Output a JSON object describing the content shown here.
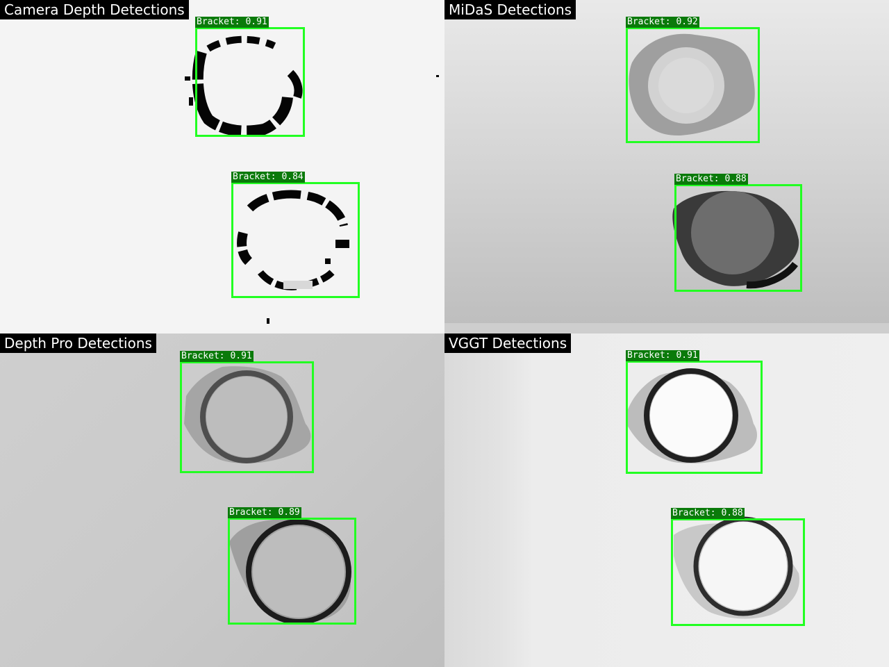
{
  "panels": [
    {
      "title": "Camera Depth Detections",
      "detections": [
        {
          "label": "Bracket: 0.91"
        },
        {
          "label": "Bracket: 0.84"
        }
      ]
    },
    {
      "title": "MiDaS Detections",
      "detections": [
        {
          "label": "Bracket: 0.92"
        },
        {
          "label": "Bracket: 0.88"
        }
      ]
    },
    {
      "title": "Depth Pro Detections",
      "detections": [
        {
          "label": "Bracket: 0.91"
        },
        {
          "label": "Bracket: 0.89"
        }
      ]
    },
    {
      "title": "VGGT Detections",
      "detections": [
        {
          "label": "Bracket: 0.91"
        },
        {
          "label": "Bracket: 0.88"
        }
      ]
    }
  ],
  "colors": {
    "box": "#22ff22",
    "label_bg": "#0a7a0a"
  }
}
